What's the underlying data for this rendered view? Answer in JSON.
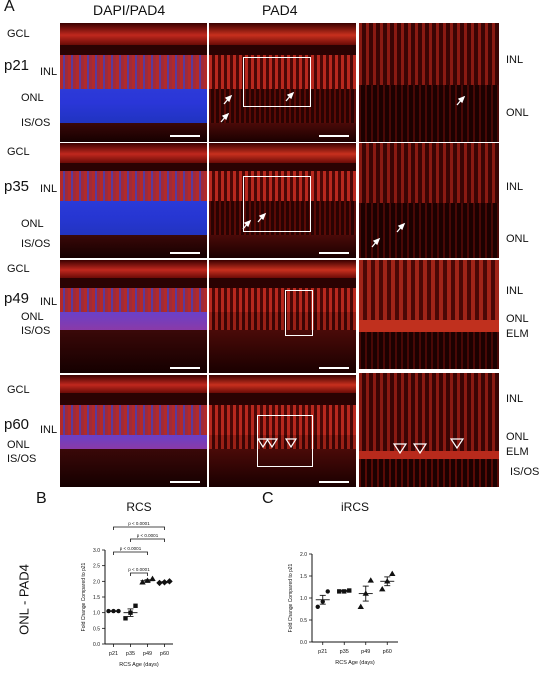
{
  "panel_a": {
    "letter": "A",
    "col_titles": [
      "DAPI/PAD4",
      "PAD4"
    ],
    "rows": [
      {
        "age": "p21",
        "left_labels": [
          "GCL",
          "INL",
          "ONL",
          "IS/OS"
        ],
        "zoom_labels": [
          "INL",
          "ONL"
        ]
      },
      {
        "age": "p35",
        "left_labels": [
          "GCL",
          "INL",
          "ONL",
          "IS/OS"
        ],
        "zoom_labels": [
          "INL",
          "ONL"
        ]
      },
      {
        "age": "p49",
        "left_labels": [
          "GCL",
          "INL",
          "ONL",
          "IS/OS"
        ],
        "zoom_labels": [
          "INL",
          "ONL",
          "ELM"
        ]
      },
      {
        "age": "p60",
        "left_labels": [
          "GCL",
          "INL",
          "ONL",
          "IS/OS"
        ],
        "zoom_labels": [
          "INL",
          "ONL",
          "ELM",
          "IS/OS"
        ]
      }
    ]
  },
  "panel_b": {
    "letter": "B",
    "side_label": "ONL - PAD4",
    "comparisons": [
      "p < 0.0001",
      "p < 0.0001",
      "p < 0.0001",
      "p < 0.0001"
    ]
  },
  "panel_c": {
    "letter": "C"
  },
  "chart_data": [
    {
      "type": "scatter",
      "title": "RCS",
      "xlabel": "RCS Age (days)",
      "ylabel": "Fold  Change Compared to p21",
      "categories": [
        "p21",
        "p35",
        "p49",
        "p60"
      ],
      "ylim": [
        0,
        3.0
      ],
      "yticks": [
        "0.0",
        "0.5",
        "1.0",
        "1.5",
        "2.0",
        "2.5",
        "3.0"
      ],
      "points": [
        [
          1.05,
          1.05,
          1.05
        ],
        [
          0.82,
          1.0,
          1.22
        ],
        [
          1.97,
          2.02,
          2.08
        ],
        [
          1.95,
          1.97,
          2.0
        ]
      ],
      "means": [
        1.05,
        1.0,
        2.02,
        1.97
      ],
      "errors": [
        0.01,
        0.12,
        0.03,
        0.02
      ],
      "markers": [
        "circle",
        "square",
        "triangle",
        "diamond"
      ]
    },
    {
      "type": "scatter",
      "title": "iRCS",
      "xlabel": "RCS Age (days)",
      "ylabel": "Fold  Change Compared to p21",
      "categories": [
        "p21",
        "p35",
        "p49",
        "p60"
      ],
      "ylim": [
        0,
        2.0
      ],
      "yticks": [
        "0.0",
        "0.5",
        "1.0",
        "1.5",
        "2.0"
      ],
      "points": [
        [
          0.8,
          0.92,
          1.15
        ],
        [
          1.15,
          1.15,
          1.17
        ],
        [
          0.8,
          1.1,
          1.4
        ],
        [
          1.2,
          1.38,
          1.55
        ]
      ],
      "means": [
        0.96,
        1.16,
        1.1,
        1.38
      ],
      "errors": [
        0.1,
        0.01,
        0.17,
        0.1
      ],
      "markers": [
        "circle",
        "square",
        "triangle",
        "triangle"
      ]
    }
  ]
}
